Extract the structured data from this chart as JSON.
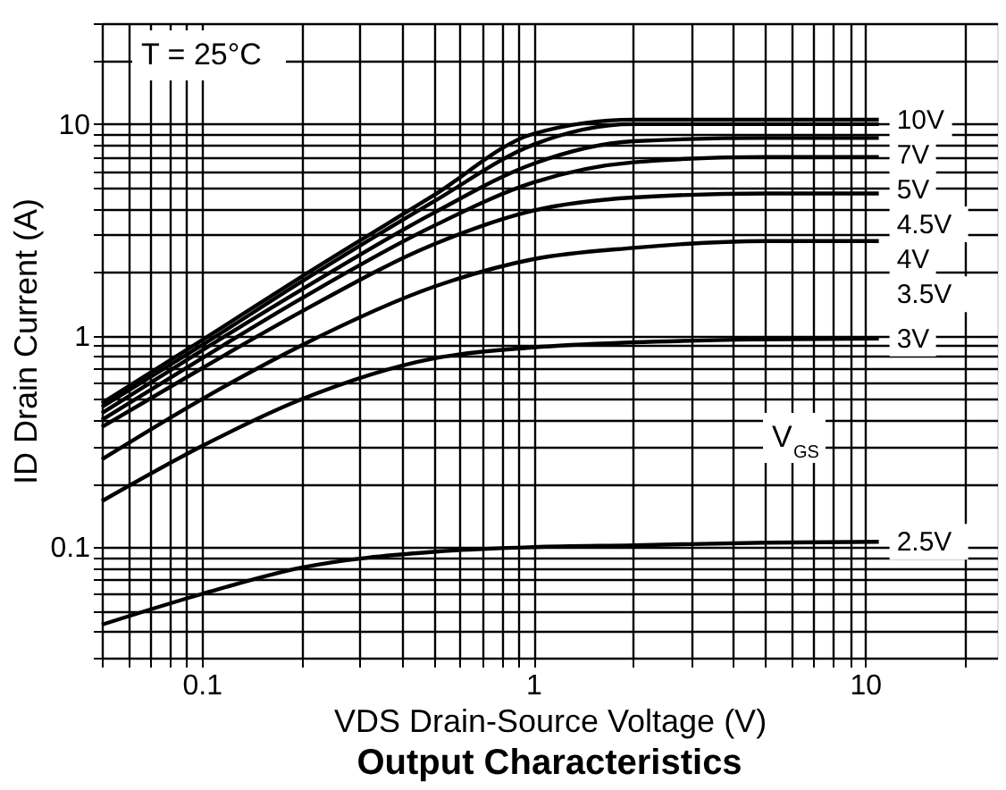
{
  "chart_data": {
    "type": "line",
    "title": "Output Characteristics",
    "xlabel": "VDS Drain-Source Voltage (V)",
    "ylabel": "ID Drain Current (A)",
    "log": "xy",
    "grid": true,
    "legend": false,
    "marker": "none",
    "line_style": "solid",
    "xlim": [
      0.05,
      25
    ],
    "ylim": [
      0.03,
      30
    ],
    "xticks": [
      {
        "value": 0.05,
        "label": null
      },
      {
        "value": 0.06,
        "label": null
      },
      {
        "value": 0.07,
        "label": null
      },
      {
        "value": 0.08,
        "label": null
      },
      {
        "value": 0.09,
        "label": null
      },
      0.1,
      {
        "value": 0.2,
        "label": null
      },
      {
        "value": 0.3,
        "label": null
      },
      {
        "value": 0.4,
        "label": null
      },
      {
        "value": 0.5,
        "label": null
      },
      {
        "value": 0.6,
        "label": null
      },
      {
        "value": 0.7,
        "label": null
      },
      {
        "value": 0.8,
        "label": null
      },
      {
        "value": 0.9,
        "label": null
      },
      1,
      {
        "value": 2,
        "label": null
      },
      {
        "value": 3,
        "label": null
      },
      {
        "value": 4,
        "label": null
      },
      {
        "value": 5,
        "label": null
      },
      {
        "value": 6,
        "label": null
      },
      {
        "value": 7,
        "label": null
      },
      {
        "value": 8,
        "label": null
      },
      {
        "value": 9,
        "label": null
      },
      10,
      {
        "value": 20,
        "label": null
      }
    ],
    "yticks": [
      {
        "value": 0.03,
        "label": null
      },
      {
        "value": 0.04,
        "label": null
      },
      {
        "value": 0.05,
        "label": null
      },
      {
        "value": 0.06,
        "label": null
      },
      {
        "value": 0.07,
        "label": null
      },
      {
        "value": 0.08,
        "label": null
      },
      {
        "value": 0.09,
        "label": null
      },
      0.1,
      {
        "value": 0.2,
        "label": null
      },
      {
        "value": 0.3,
        "label": null
      },
      {
        "value": 0.4,
        "label": null
      },
      {
        "value": 0.5,
        "label": null
      },
      {
        "value": 0.6,
        "label": null
      },
      {
        "value": 0.7,
        "label": null
      },
      {
        "value": 0.8,
        "label": null
      },
      {
        "value": 0.9,
        "label": null
      },
      1,
      {
        "value": 2,
        "label": null
      },
      {
        "value": 3,
        "label": null
      },
      {
        "value": 4,
        "label": null
      },
      {
        "value": 5,
        "label": null
      },
      {
        "value": 6,
        "label": null
      },
      {
        "value": 7,
        "label": null
      },
      {
        "value": 8,
        "label": null
      },
      {
        "value": 9,
        "label": null
      },
      10,
      {
        "value": 20,
        "label": null
      },
      {
        "value": 30,
        "label": null
      }
    ],
    "x": [
      0.05,
      0.1,
      0.2,
      0.5,
      1,
      2,
      5,
      11
    ],
    "series": [
      {
        "name": "10V",
        "color": "#000000",
        "values": [
          0.48,
          0.95,
          1.9,
          4.6,
          9.0,
          10.5,
          10.5,
          10.5
        ]
      },
      {
        "name": "7V",
        "color": "#000000",
        "values": [
          0.46,
          0.9,
          1.8,
          4.3,
          8.0,
          10,
          10,
          10
        ]
      },
      {
        "name": "5V",
        "color": "#000000",
        "values": [
          0.43,
          0.85,
          1.65,
          3.8,
          6.5,
          8.3,
          8.6,
          8.6
        ]
      },
      {
        "name": "4.5V",
        "color": "#000000",
        "values": [
          0.4,
          0.78,
          1.5,
          3.3,
          5.3,
          6.6,
          7.0,
          7.0
        ]
      },
      {
        "name": "4V",
        "color": "#000000",
        "values": [
          0.37,
          0.7,
          1.3,
          2.7,
          3.9,
          4.5,
          4.7,
          4.7
        ]
      },
      {
        "name": "3.5V",
        "color": "#000000",
        "values": [
          0.26,
          0.5,
          0.9,
          1.7,
          2.3,
          2.6,
          2.8,
          2.8
        ]
      },
      {
        "name": "3V",
        "color": "#000000",
        "values": [
          0.165,
          0.3,
          0.5,
          0.78,
          0.88,
          0.93,
          0.96,
          0.97
        ]
      },
      {
        "name": "2.5V",
        "color": "#000000",
        "values": [
          0.043,
          0.06,
          0.08,
          0.095,
          0.1,
          0.102,
          0.105,
          0.106
        ]
      }
    ],
    "annotations": [
      "T = 25°C",
      "V$_{GS}$"
    ]
  }
}
